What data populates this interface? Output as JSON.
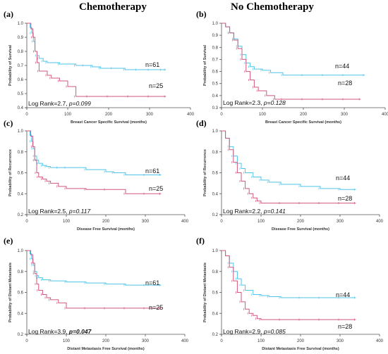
{
  "headers": {
    "left": "Chemotherapy",
    "right": "No Chemotherapy"
  },
  "colors": {
    "high": "#4fc3e8",
    "low": "#d1577c",
    "axis": "#555555"
  },
  "chart_data": [
    {
      "panel": "(a)",
      "type": "line",
      "xlabel": "Breast Cancer Specific Survival (months)",
      "ylabel": "Probability of Survival",
      "xlim": [
        0,
        400
      ],
      "ylim": [
        0.4,
        1.0
      ],
      "xticks": [
        0,
        100,
        200,
        300,
        400
      ],
      "yticks": [
        0.4,
        0.5,
        0.6,
        0.7,
        0.8,
        0.9,
        1.0
      ],
      "annotation_prefix": "Log Rank=2.7, ",
      "annotation_p": "p=0.099",
      "p_bold": false,
      "series": [
        {
          "name": "n=61",
          "color_key": "high",
          "x": [
            0,
            8,
            12,
            16,
            20,
            25,
            30,
            40,
            50,
            80,
            120,
            140,
            160,
            180,
            210,
            240,
            270,
            300,
            330,
            340
          ],
          "y": [
            1.0,
            0.97,
            0.93,
            0.87,
            0.8,
            0.77,
            0.75,
            0.73,
            0.72,
            0.71,
            0.7,
            0.7,
            0.69,
            0.68,
            0.68,
            0.67,
            0.67,
            0.67,
            0.67,
            0.67
          ]
        },
        {
          "name": "n=25",
          "color_key": "low",
          "x": [
            0,
            10,
            15,
            20,
            25,
            30,
            50,
            60,
            80,
            100,
            120,
            150,
            200,
            250,
            300,
            340
          ],
          "y": [
            1.0,
            0.96,
            0.9,
            0.8,
            0.72,
            0.66,
            0.63,
            0.61,
            0.59,
            0.55,
            0.48,
            0.48,
            0.48,
            0.48,
            0.48,
            0.48
          ]
        }
      ]
    },
    {
      "panel": "(b)",
      "type": "line",
      "xlabel": "Breast Cancer Specific Survival (months)",
      "ylabel": "Probability of Survival",
      "xlim": [
        0,
        400
      ],
      "ylim": [
        0.3,
        1.0
      ],
      "xticks": [
        0,
        100,
        200,
        300,
        400
      ],
      "yticks": [
        0.3,
        0.4,
        0.5,
        0.6,
        0.7,
        0.8,
        0.9,
        1.0
      ],
      "annotation_prefix": "Log Rank=2.3, ",
      "annotation_p": "p=0.128",
      "p_bold": false,
      "series": [
        {
          "name": "n=44",
          "color_key": "high",
          "x": [
            0,
            10,
            20,
            30,
            40,
            50,
            60,
            70,
            80,
            100,
            120,
            150,
            200,
            250,
            300,
            350
          ],
          "y": [
            1.0,
            0.97,
            0.92,
            0.87,
            0.81,
            0.74,
            0.67,
            0.64,
            0.62,
            0.61,
            0.59,
            0.57,
            0.57,
            0.57,
            0.57,
            0.57
          ]
        },
        {
          "name": "n=28",
          "color_key": "low",
          "x": [
            0,
            10,
            20,
            30,
            40,
            50,
            60,
            70,
            80,
            90,
            110,
            130,
            150,
            200,
            250,
            300,
            340
          ],
          "y": [
            1.0,
            0.97,
            0.92,
            0.86,
            0.79,
            0.7,
            0.6,
            0.53,
            0.47,
            0.44,
            0.4,
            0.37,
            0.37,
            0.37,
            0.37,
            0.37,
            0.37
          ]
        }
      ]
    },
    {
      "panel": "(c)",
      "type": "line",
      "xlabel": "Disease Free Survival (months)",
      "ylabel": "Probability of Recurrence",
      "xlim": [
        0,
        400
      ],
      "ylim": [
        0.2,
        1.0
      ],
      "xticks": [
        0,
        100,
        200,
        300,
        400
      ],
      "yticks": [
        0.2,
        0.4,
        0.6,
        0.8,
        1.0
      ],
      "annotation_prefix": "Log Rank=2.5, ",
      "annotation_p": "p=0.117",
      "p_bold": false,
      "series": [
        {
          "name": "n=61",
          "color_key": "high",
          "x": [
            0,
            8,
            12,
            16,
            20,
            25,
            30,
            40,
            50,
            60,
            80,
            100,
            150,
            200,
            220,
            250,
            300,
            340
          ],
          "y": [
            1.0,
            0.96,
            0.9,
            0.83,
            0.76,
            0.72,
            0.69,
            0.67,
            0.66,
            0.65,
            0.65,
            0.65,
            0.63,
            0.61,
            0.6,
            0.58,
            0.58,
            0.58
          ]
        },
        {
          "name": "n=25",
          "color_key": "low",
          "x": [
            0,
            10,
            15,
            20,
            25,
            30,
            40,
            50,
            60,
            80,
            100,
            150,
            200,
            250,
            300,
            340
          ],
          "y": [
            1.0,
            0.95,
            0.85,
            0.72,
            0.6,
            0.56,
            0.54,
            0.52,
            0.5,
            0.47,
            0.45,
            0.44,
            0.44,
            0.4,
            0.4,
            0.4
          ]
        }
      ]
    },
    {
      "panel": "(d)",
      "type": "line",
      "xlabel": "Disease Free Survival (months)",
      "ylabel": "Probability of Recurrence",
      "xlim": [
        0,
        400
      ],
      "ylim": [
        0.2,
        1.0
      ],
      "xticks": [
        0,
        100,
        200,
        300,
        400
      ],
      "yticks": [
        0.2,
        0.4,
        0.6,
        0.8,
        1.0
      ],
      "annotation_prefix": "Log Rank=2.2, ",
      "annotation_p": "p=0.141",
      "p_bold": false,
      "series": [
        {
          "name": "n=44",
          "color_key": "high",
          "x": [
            0,
            10,
            20,
            30,
            40,
            50,
            60,
            80,
            100,
            120,
            150,
            200,
            250,
            300,
            340
          ],
          "y": [
            1.0,
            0.93,
            0.85,
            0.76,
            0.69,
            0.64,
            0.6,
            0.56,
            0.53,
            0.51,
            0.49,
            0.47,
            0.45,
            0.44,
            0.44
          ]
        },
        {
          "name": "n=28",
          "color_key": "low",
          "x": [
            0,
            10,
            20,
            30,
            40,
            50,
            60,
            70,
            80,
            90,
            100,
            150,
            200,
            250,
            300,
            340
          ],
          "y": [
            1.0,
            0.93,
            0.82,
            0.7,
            0.6,
            0.52,
            0.45,
            0.4,
            0.36,
            0.33,
            0.31,
            0.31,
            0.31,
            0.31,
            0.31,
            0.31
          ]
        }
      ]
    },
    {
      "panel": "(e)",
      "type": "line",
      "xlabel": "Distant Metastasis Free Survival (months)",
      "ylabel": "Probability of Distant Metastasis",
      "xlim": [
        0,
        400
      ],
      "ylim": [
        0.2,
        1.0
      ],
      "xticks": [
        0,
        100,
        200,
        300,
        400
      ],
      "yticks": [
        0.2,
        0.4,
        0.6,
        0.8,
        1.0
      ],
      "annotation_prefix": "Log Rank=3.9, ",
      "annotation_p": "p=0.047",
      "p_bold": true,
      "series": [
        {
          "name": "n=61",
          "color_key": "high",
          "x": [
            0,
            8,
            12,
            16,
            20,
            25,
            30,
            40,
            60,
            100,
            150,
            200,
            250,
            300,
            340
          ],
          "y": [
            1.0,
            0.97,
            0.92,
            0.86,
            0.8,
            0.76,
            0.74,
            0.72,
            0.71,
            0.7,
            0.69,
            0.68,
            0.67,
            0.67,
            0.67
          ]
        },
        {
          "name": "n=25",
          "color_key": "low",
          "x": [
            0,
            10,
            15,
            20,
            25,
            30,
            40,
            50,
            60,
            80,
            100,
            150,
            200,
            250,
            300,
            340
          ],
          "y": [
            1.0,
            0.96,
            0.88,
            0.78,
            0.68,
            0.62,
            0.58,
            0.55,
            0.53,
            0.5,
            0.45,
            0.45,
            0.45,
            0.45,
            0.45,
            0.45
          ]
        }
      ]
    },
    {
      "panel": "(f)",
      "type": "line",
      "xlabel": "Distant Metastasis Free Survival (months)",
      "ylabel": "Probability of Distant Metastasis",
      "xlim": [
        0,
        400
      ],
      "ylim": [
        0.2,
        1.0
      ],
      "xticks": [
        0,
        100,
        200,
        300,
        400
      ],
      "yticks": [
        0.2,
        0.4,
        0.6,
        0.8,
        1.0
      ],
      "annotation_prefix": "Log Rank=2.9, ",
      "annotation_p": "p=0.085",
      "p_bold": false,
      "series": [
        {
          "name": "n=44",
          "color_key": "high",
          "x": [
            0,
            10,
            20,
            30,
            40,
            50,
            60,
            80,
            100,
            120,
            150,
            200,
            250,
            300,
            340
          ],
          "y": [
            1.0,
            0.95,
            0.88,
            0.8,
            0.73,
            0.67,
            0.62,
            0.58,
            0.57,
            0.56,
            0.55,
            0.55,
            0.55,
            0.55,
            0.55
          ]
        },
        {
          "name": "n=28",
          "color_key": "low",
          "x": [
            0,
            10,
            20,
            30,
            40,
            50,
            60,
            70,
            80,
            90,
            100,
            150,
            200,
            250,
            300,
            340
          ],
          "y": [
            1.0,
            0.95,
            0.84,
            0.71,
            0.6,
            0.51,
            0.44,
            0.4,
            0.38,
            0.35,
            0.34,
            0.34,
            0.34,
            0.34,
            0.34,
            0.34
          ]
        }
      ]
    }
  ]
}
